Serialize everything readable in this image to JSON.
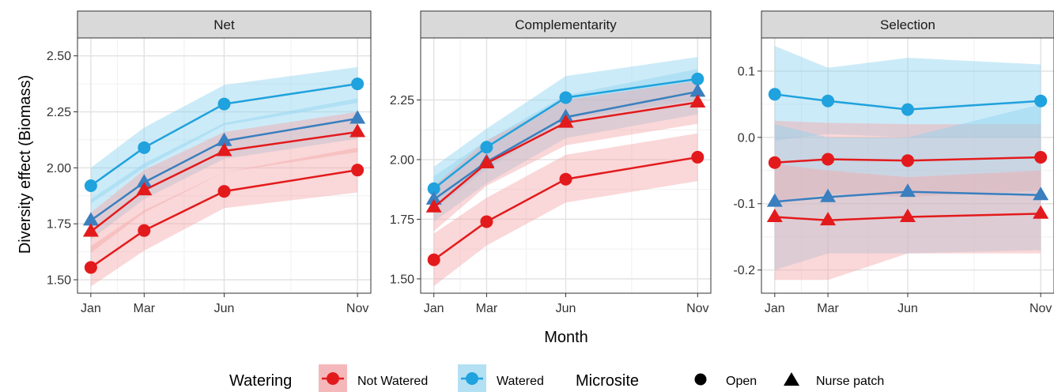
{
  "axis_titles": {
    "x": "Month",
    "y": "Diversity effect (Biomass)"
  },
  "legend": {
    "watering_title": "Watering",
    "not_watered": "Not Watered",
    "watered": "Watered",
    "microsite_title": "Microsite",
    "open": "Open",
    "nurse": "Nurse patch"
  },
  "colors": {
    "not_watered": "#e31a1c",
    "watered": "#1fa2dd",
    "watered_nurse": "#3a7fbf"
  },
  "chart_data": [
    {
      "type": "line",
      "title": "Net",
      "x": [
        "Jan",
        "Mar",
        "Jun",
        "Nov"
      ],
      "x_numeric": [
        1,
        3,
        6,
        11
      ],
      "ylim": [
        1.44,
        2.58
      ],
      "yticks": [
        1.5,
        1.75,
        2.0,
        2.25,
        2.5
      ],
      "ytick_labels": [
        "1.50",
        "1.75",
        "2.00",
        "2.25",
        "2.50"
      ],
      "grid": true,
      "series": [
        {
          "watering": "Watered",
          "microsite": "Open",
          "values": [
            1.92,
            2.09,
            2.285,
            2.375
          ],
          "lower": [
            1.84,
            2.0,
            2.19,
            2.29
          ],
          "upper": [
            2.0,
            2.18,
            2.37,
            2.45
          ]
        },
        {
          "watering": "Watered",
          "microsite": "Nurse patch",
          "values": [
            1.765,
            1.935,
            2.12,
            2.22
          ],
          "lower": [
            1.68,
            1.86,
            2.04,
            2.13
          ],
          "upper": [
            1.86,
            2.02,
            2.2,
            2.31
          ]
        },
        {
          "watering": "Not Watered",
          "microsite": "Nurse patch",
          "values": [
            1.715,
            1.9,
            2.075,
            2.16
          ],
          "lower": [
            1.62,
            1.8,
            1.98,
            2.07
          ],
          "upper": [
            1.8,
            1.99,
            2.16,
            2.25
          ]
        },
        {
          "watering": "Not Watered",
          "microsite": "Open",
          "values": [
            1.555,
            1.72,
            1.895,
            1.99
          ],
          "lower": [
            1.47,
            1.63,
            1.82,
            1.89
          ],
          "upper": [
            1.65,
            1.81,
            1.98,
            2.09
          ]
        }
      ]
    },
    {
      "type": "line",
      "title": "Complementarity",
      "x": [
        "Jan",
        "Mar",
        "Jun",
        "Nov"
      ],
      "x_numeric": [
        1,
        3,
        6,
        11
      ],
      "ylim": [
        1.44,
        2.51
      ],
      "yticks": [
        1.5,
        1.75,
        2.0,
        2.25
      ],
      "ytick_labels": [
        "1.50",
        "1.75",
        "2.00",
        "2.25"
      ],
      "grid": true,
      "series": [
        {
          "watering": "Watered",
          "microsite": "Open",
          "values": [
            1.878,
            2.052,
            2.26,
            2.338
          ],
          "lower": [
            1.79,
            1.96,
            2.17,
            2.25
          ],
          "upper": [
            1.97,
            2.13,
            2.35,
            2.43
          ]
        },
        {
          "watering": "Watered",
          "microsite": "Nurse patch",
          "values": [
            1.833,
            1.99,
            2.178,
            2.285
          ],
          "lower": [
            1.74,
            1.9,
            2.09,
            2.19
          ],
          "upper": [
            1.93,
            2.08,
            2.27,
            2.38
          ]
        },
        {
          "watering": "Not Watered",
          "microsite": "Nurse patch",
          "values": [
            1.8,
            1.985,
            2.155,
            2.24
          ],
          "lower": [
            1.7,
            1.89,
            2.06,
            2.15
          ],
          "upper": [
            1.89,
            2.08,
            2.25,
            2.33
          ]
        },
        {
          "watering": "Not Watered",
          "microsite": "Open",
          "values": [
            1.58,
            1.74,
            1.918,
            2.01
          ],
          "lower": [
            1.47,
            1.64,
            1.82,
            1.91
          ],
          "upper": [
            1.69,
            1.84,
            2.02,
            2.11
          ]
        }
      ]
    },
    {
      "type": "line",
      "title": "Selection",
      "x": [
        "Jan",
        "Mar",
        "Jun",
        "Nov"
      ],
      "x_numeric": [
        1,
        3,
        6,
        11
      ],
      "ylim": [
        -0.235,
        0.15
      ],
      "yticks": [
        -0.2,
        -0.1,
        0.0,
        0.1
      ],
      "ytick_labels": [
        "-0.2",
        "-0.1",
        "0.0",
        "0.1"
      ],
      "grid": true,
      "series": [
        {
          "watering": "Watered",
          "microsite": "Open",
          "values": [
            0.065,
            0.055,
            0.042,
            0.055
          ],
          "lower": [
            -0.005,
            0.005,
            0.0,
            0.0
          ],
          "upper": [
            0.138,
            0.105,
            0.12,
            0.11
          ]
        },
        {
          "watering": "Not Watered",
          "microsite": "Open",
          "values": [
            -0.038,
            -0.033,
            -0.035,
            -0.03
          ],
          "lower": [
            -0.1,
            -0.085,
            -0.09,
            -0.08
          ],
          "upper": [
            0.025,
            0.022,
            0.02,
            0.02
          ]
        },
        {
          "watering": "Watered",
          "microsite": "Nurse patch",
          "values": [
            -0.097,
            -0.09,
            -0.082,
            -0.087
          ],
          "lower": [
            -0.2,
            -0.175,
            -0.175,
            -0.17
          ],
          "upper": [
            0.02,
            0.0,
            0.0,
            0.05
          ]
        },
        {
          "watering": "Not Watered",
          "microsite": "Nurse patch",
          "values": [
            -0.12,
            -0.125,
            -0.12,
            -0.115
          ],
          "lower": [
            -0.215,
            -0.215,
            -0.175,
            -0.175
          ],
          "upper": [
            -0.04,
            -0.05,
            -0.06,
            -0.05
          ]
        }
      ]
    }
  ]
}
